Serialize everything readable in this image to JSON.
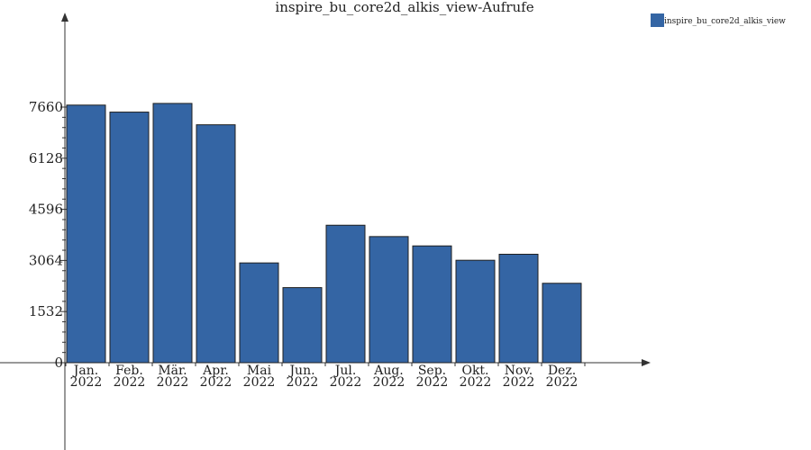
{
  "chart_data": {
    "type": "bar",
    "title": "inspire_bu_core2d_alkis_view-Aufrufe",
    "categories": [
      [
        "Jan.",
        "2022"
      ],
      [
        "Feb.",
        "2022"
      ],
      [
        "Mär.",
        "2022"
      ],
      [
        "Apr.",
        "2022"
      ],
      [
        "Mai",
        "2022"
      ],
      [
        "Jun.",
        "2022"
      ],
      [
        "Jul.",
        "2022"
      ],
      [
        "Aug.",
        "2022"
      ],
      [
        "Sep.",
        "2022"
      ],
      [
        "Okt.",
        "2022"
      ],
      [
        "Nov.",
        "2022"
      ],
      [
        "Dez.",
        "2022"
      ]
    ],
    "series": [
      {
        "name": "inspire_bu_core2d_alkis_view",
        "values": [
          7720,
          7510,
          7770,
          7130,
          2990,
          2250,
          4120,
          3780,
          3500,
          3070,
          3250,
          2380
        ]
      }
    ],
    "yticks": [
      "0",
      "1532",
      "3064",
      "4596",
      "6128",
      "7660"
    ],
    "ytick_values": [
      0,
      1532,
      3064,
      4596,
      6128,
      7660
    ],
    "ylim": [
      0,
      7660
    ],
    "xlabel": "",
    "ylabel": "",
    "legend_position": "top-right",
    "grid": false,
    "colors": {
      "bar_fill": "#3465a4",
      "bar_stroke": "#1f1f1f",
      "axis": "#333333",
      "text": "#222222"
    }
  }
}
